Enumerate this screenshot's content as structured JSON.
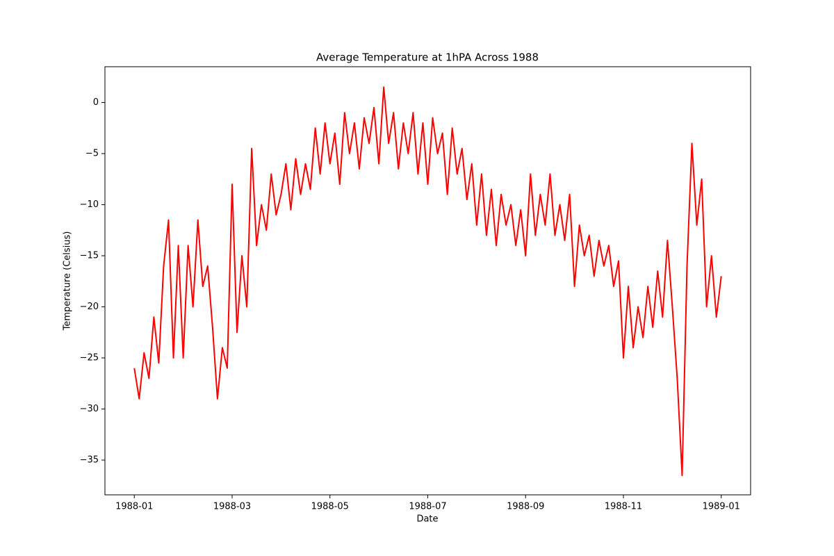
{
  "chart_data": {
    "type": "line",
    "title": "Average Temperature at 1hPA Across 1988",
    "xlabel": "Date",
    "ylabel": "Temperature (Celsius)",
    "xlim": [
      -0.6,
      12.6
    ],
    "xticks": [
      {
        "value": 0,
        "label": "1988-01"
      },
      {
        "value": 2,
        "label": "1988-03"
      },
      {
        "value": 4,
        "label": "1988-05"
      },
      {
        "value": 6,
        "label": "1988-07"
      },
      {
        "value": 8,
        "label": "1988-09"
      },
      {
        "value": 10,
        "label": "1988-11"
      },
      {
        "value": 12,
        "label": "1989-01"
      }
    ],
    "ylim": [
      -38.4,
      3.5
    ],
    "yticks": [
      {
        "value": -35,
        "label": "−35"
      },
      {
        "value": -30,
        "label": "−30"
      },
      {
        "value": -25,
        "label": "−25"
      },
      {
        "value": -20,
        "label": "−20"
      },
      {
        "value": -15,
        "label": "−15"
      },
      {
        "value": -10,
        "label": "−10"
      },
      {
        "value": -5,
        "label": "−5"
      },
      0
    ],
    "grid": false,
    "series": [
      {
        "color": "#ff0000",
        "x": [
          0,
          0.1,
          0.2,
          0.3,
          0.4,
          0.5,
          0.6,
          0.7,
          0.8,
          0.9,
          1,
          1.1,
          1.2,
          1.3,
          1.4,
          1.5,
          1.6,
          1.7,
          1.8,
          1.9,
          2,
          2.1,
          2.2,
          2.3,
          2.4,
          2.5,
          2.6,
          2.7,
          2.8,
          2.9,
          3,
          3.1,
          3.2,
          3.3,
          3.4,
          3.5,
          3.6,
          3.7,
          3.8,
          3.9,
          4,
          4.1,
          4.2,
          4.3,
          4.4,
          4.5,
          4.6,
          4.7,
          4.8,
          4.9,
          5,
          5.1,
          5.2,
          5.3,
          5.4,
          5.5,
          5.6,
          5.7,
          5.8,
          5.9,
          6,
          6.1,
          6.2,
          6.3,
          6.4,
          6.5,
          6.6,
          6.7,
          6.8,
          6.9,
          7,
          7.1,
          7.2,
          7.3,
          7.4,
          7.5,
          7.6,
          7.7,
          7.8,
          7.9,
          8,
          8.1,
          8.2,
          8.3,
          8.4,
          8.5,
          8.6,
          8.7,
          8.8,
          8.9,
          9,
          9.1,
          9.2,
          9.3,
          9.4,
          9.5,
          9.6,
          9.7,
          9.8,
          9.9,
          10,
          10.1,
          10.2,
          10.3,
          10.4,
          10.5,
          10.6,
          10.7,
          10.8,
          10.9,
          11,
          11.1,
          11.2,
          11.3,
          11.4,
          11.5,
          11.6,
          11.7,
          11.8,
          11.9,
          12
        ],
        "values": [
          -26,
          -29,
          -24.5,
          -27,
          -21,
          -25.5,
          -16,
          -11.5,
          -25,
          -14,
          -25,
          -14,
          -20,
          -11.5,
          -18,
          -16,
          -22,
          -29,
          -24,
          -26,
          -8,
          -22.5,
          -15,
          -20,
          -4.5,
          -14,
          -10,
          -12.5,
          -7,
          -11,
          -9,
          -6,
          -10.5,
          -5.5,
          -9,
          -6,
          -8.5,
          -2.5,
          -7,
          -2,
          -6,
          -3,
          -8,
          -1,
          -5,
          -2,
          -6.5,
          -1.5,
          -4,
          -0.5,
          -6,
          1.5,
          -4,
          -1,
          -6.5,
          -2,
          -5,
          -1,
          -7,
          -2,
          -8,
          -1.5,
          -5,
          -3,
          -9,
          -2.5,
          -7,
          -4.5,
          -9.5,
          -6,
          -12,
          -7,
          -13,
          -8.5,
          -14,
          -9,
          -12,
          -10,
          -14,
          -10.5,
          -15,
          -7,
          -13,
          -9,
          -12,
          -7,
          -13,
          -10,
          -13.5,
          -9,
          -18,
          -12,
          -15,
          -13,
          -17,
          -13.5,
          -16,
          -14,
          -18,
          -15.5,
          -25,
          -18,
          -24,
          -20,
          -23,
          -18,
          -22,
          -16.5,
          -21,
          -13.5,
          -20,
          -27,
          -36.5,
          -16,
          -4,
          -12,
          -7.5,
          -20,
          -15,
          -21,
          -17
        ]
      }
    ]
  }
}
